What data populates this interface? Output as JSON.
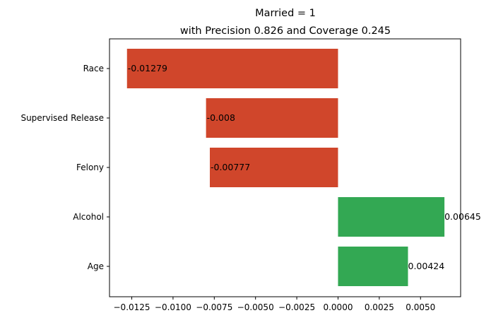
{
  "chart_data": {
    "type": "bar",
    "orientation": "horizontal",
    "title": "Married = 1",
    "subtitle": "with Precision 0.826 and Coverage 0.245",
    "xlabel": "",
    "ylabel": "",
    "categories": [
      "Race",
      "Supervised Release",
      "Felony",
      "Alcohol",
      "Age"
    ],
    "values": [
      -0.01279,
      -0.008,
      -0.00777,
      0.00645,
      0.00424
    ],
    "data_labels": [
      "-0.01279",
      "-0.008",
      "-0.00777",
      "0.00645",
      "0.00424"
    ],
    "xlim": [
      -0.01385,
      0.00743
    ],
    "xticks": [
      -0.0125,
      -0.01,
      -0.0075,
      -0.005,
      -0.0025,
      0.0,
      0.0025,
      0.005
    ],
    "xtick_labels": [
      "−0.0125",
      "−0.0100",
      "−0.0075",
      "−0.0050",
      "−0.0025",
      "0.0000",
      "0.0025",
      "0.0050"
    ],
    "grid": false,
    "legend": "none",
    "colors": {
      "negative": "#d0462b",
      "positive": "#33a853",
      "axis": "#000000",
      "background": "#ffffff"
    }
  }
}
